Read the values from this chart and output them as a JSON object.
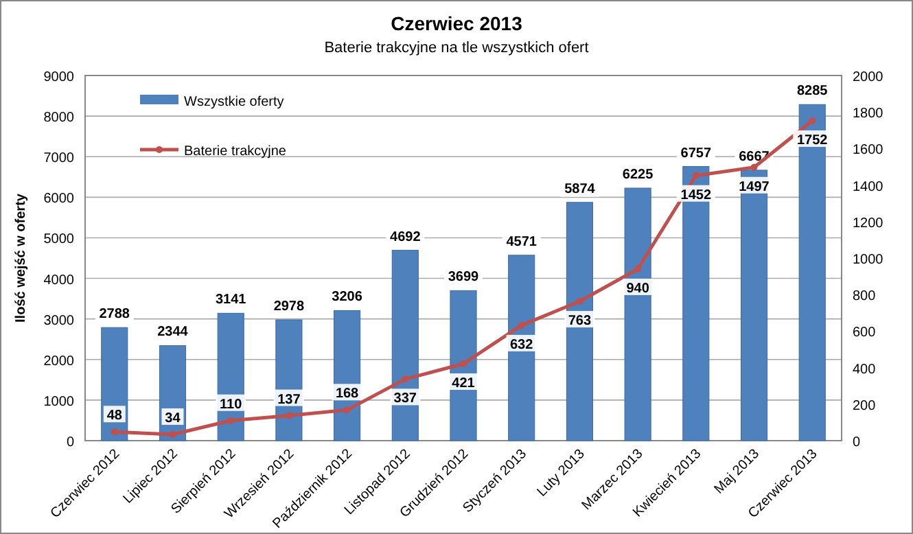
{
  "chart_data": {
    "type": "bar",
    "title": "Czerwiec 2013",
    "subtitle": "Baterie trakcyjne na tle wszystkich ofert",
    "ylabel": "Ilość wejść w oferty",
    "categories": [
      "Czerwiec 2012",
      "Lipiec 2012",
      "Sierpień 2012",
      "Wrzesień 2012",
      "Październik 2012",
      "Listopad 2012",
      "Grudzień 2012",
      "Styczeń 2013",
      "Luty 2013",
      "Marzec 2013",
      "Kwiecień 2013",
      "Maj 2013",
      "Czerwiec 2013"
    ],
    "series": [
      {
        "name": "Wszystkie oferty",
        "color": "#4f81bd",
        "values": [
          2788,
          2344,
          3141,
          2978,
          3206,
          4692,
          3699,
          4571,
          5874,
          6225,
          6757,
          6667,
          8285
        ]
      },
      {
        "name": "Baterie trakcyjne",
        "type": "line",
        "axis": "y2",
        "color": "#c0504d",
        "marker": "circle",
        "values": [
          48,
          34,
          110,
          137,
          168,
          337,
          421,
          632,
          763,
          940,
          1452,
          1497,
          1752
        ]
      }
    ],
    "ylim": [
      0,
      9000
    ],
    "yticks": [
      0,
      1000,
      2000,
      3000,
      4000,
      5000,
      6000,
      7000,
      8000,
      9000
    ],
    "y2lim": [
      0,
      2000
    ],
    "y2ticks": [
      0,
      200,
      400,
      600,
      800,
      1000,
      1200,
      1400,
      1600,
      1800,
      2000
    ],
    "grid": "y",
    "legend": "top left",
    "data_labels": true
  }
}
